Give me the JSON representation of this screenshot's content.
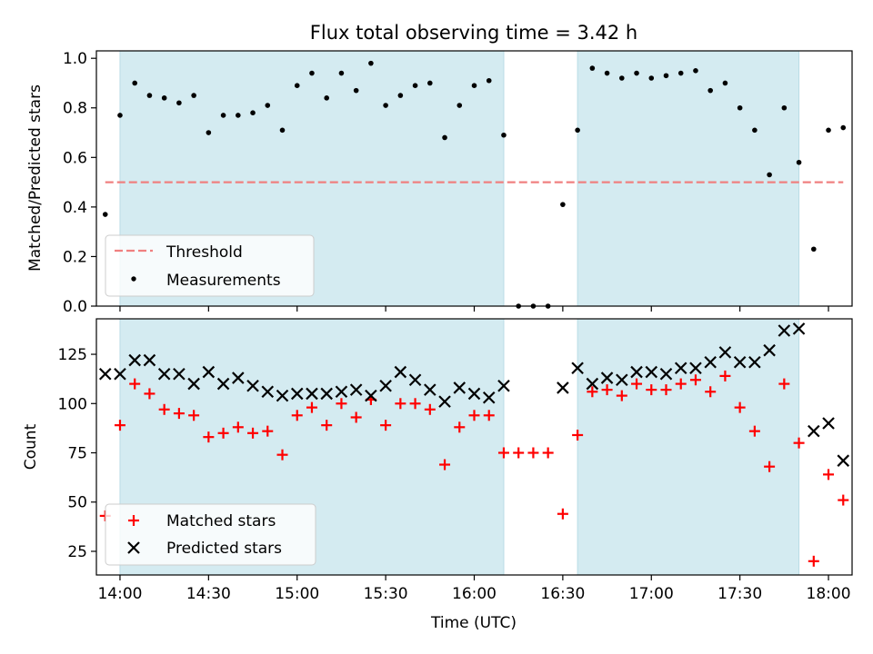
{
  "chart_data": {
    "title": "Flux total observing time = 3.42 h",
    "xlabel": "Time (UTC)",
    "x_ticks": [
      "14:00",
      "14:30",
      "15:00",
      "15:30",
      "16:00",
      "16:30",
      "17:00",
      "17:30",
      "18:00"
    ],
    "x_range": [
      "13:52",
      "18:08"
    ],
    "shaded_intervals": [
      [
        "14:00",
        "16:10"
      ],
      [
        "16:35",
        "17:50"
      ]
    ],
    "shade_color": "#d4ebf1",
    "panels": [
      {
        "type": "scatter",
        "ylabel": "Matched/Predicted stars",
        "ylim": [
          0,
          1.03
        ],
        "yticks": [
          0.0,
          0.2,
          0.4,
          0.6,
          0.8,
          1.0
        ],
        "ytick_labels": [
          "0.0",
          "0.2",
          "0.4",
          "0.6",
          "0.8",
          "1.0"
        ],
        "legend": {
          "location": "lower-left",
          "entries": [
            "Threshold",
            "Measurements"
          ]
        },
        "threshold": {
          "name": "Threshold",
          "value": 0.5,
          "x_start": "13:55",
          "x_end": "18:05",
          "color": "#f08080"
        },
        "series": [
          {
            "name": "Measurements",
            "marker": "dot",
            "color": "#000000",
            "x": [
              "13:55",
              "14:00",
              "14:05",
              "14:10",
              "14:15",
              "14:20",
              "14:25",
              "14:30",
              "14:35",
              "14:40",
              "14:45",
              "14:50",
              "14:55",
              "15:00",
              "15:05",
              "15:10",
              "15:15",
              "15:20",
              "15:25",
              "15:30",
              "15:35",
              "15:40",
              "15:45",
              "15:50",
              "15:55",
              "16:00",
              "16:05",
              "16:10",
              "16:15",
              "16:20",
              "16:25",
              "16:30",
              "16:35",
              "16:40",
              "16:45",
              "16:50",
              "16:55",
              "17:00",
              "17:05",
              "17:10",
              "17:15",
              "17:20",
              "17:25",
              "17:30",
              "17:35",
              "17:40",
              "17:45",
              "17:50",
              "17:55",
              "18:00",
              "18:05"
            ],
            "y": [
              0.37,
              0.77,
              0.9,
              0.85,
              0.84,
              0.82,
              0.85,
              0.7,
              0.77,
              0.77,
              0.78,
              0.81,
              0.71,
              0.89,
              0.94,
              0.84,
              0.94,
              0.87,
              0.98,
              0.81,
              0.85,
              0.89,
              0.9,
              0.68,
              0.81,
              0.89,
              0.91,
              0.69,
              0.0,
              0.0,
              0.0,
              0.41,
              0.71,
              0.96,
              0.94,
              0.92,
              0.94,
              0.92,
              0.93,
              0.94,
              0.95,
              0.87,
              0.9,
              0.8,
              0.71,
              0.53,
              0.8,
              0.58,
              0.23,
              0.71,
              0.72
            ]
          }
        ]
      },
      {
        "type": "scatter",
        "ylabel": "Count",
        "ylim": [
          13,
          143
        ],
        "yticks": [
          25,
          50,
          75,
          100,
          125
        ],
        "ytick_labels": [
          "25",
          "50",
          "75",
          "100",
          "125"
        ],
        "legend": {
          "location": "lower-left",
          "entries": [
            "Matched stars",
            "Predicted stars"
          ]
        },
        "series": [
          {
            "name": "Matched stars",
            "marker": "plus",
            "color": "#ff0000",
            "x": [
              "13:55",
              "14:00",
              "14:05",
              "14:10",
              "14:15",
              "14:20",
              "14:25",
              "14:30",
              "14:35",
              "14:40",
              "14:45",
              "14:50",
              "14:55",
              "15:00",
              "15:05",
              "15:10",
              "15:15",
              "15:20",
              "15:25",
              "15:30",
              "15:35",
              "15:40",
              "15:45",
              "15:50",
              "15:55",
              "16:00",
              "16:05",
              "16:10",
              "16:15",
              "16:20",
              "16:25",
              "16:30",
              "16:35",
              "16:40",
              "16:45",
              "16:50",
              "16:55",
              "17:00",
              "17:05",
              "17:10",
              "17:15",
              "17:20",
              "17:25",
              "17:30",
              "17:35",
              "17:40",
              "17:45",
              "17:50",
              "17:55",
              "18:00",
              "18:05"
            ],
            "y": [
              43,
              89,
              110,
              105,
              97,
              95,
              94,
              83,
              85,
              88,
              85,
              86,
              74,
              94,
              98,
              89,
              100,
              93,
              102,
              89,
              100,
              100,
              97,
              69,
              88,
              94,
              94,
              75,
              75,
              75,
              75,
              44,
              84,
              106,
              107,
              104,
              110,
              107,
              107,
              110,
              112,
              106,
              114,
              98,
              86,
              68,
              110,
              80,
              20,
              64,
              51
            ]
          },
          {
            "name": "Predicted stars",
            "marker": "x",
            "color": "#000000",
            "x": [
              "13:55",
              "14:00",
              "14:05",
              "14:10",
              "14:15",
              "14:20",
              "14:25",
              "14:30",
              "14:35",
              "14:40",
              "14:45",
              "14:50",
              "14:55",
              "15:00",
              "15:05",
              "15:10",
              "15:15",
              "15:20",
              "15:25",
              "15:30",
              "15:35",
              "15:40",
              "15:45",
              "15:50",
              "15:55",
              "16:00",
              "16:05",
              "16:10",
              "16:30",
              "16:35",
              "16:40",
              "16:45",
              "16:50",
              "16:55",
              "17:00",
              "17:05",
              "17:10",
              "17:15",
              "17:20",
              "17:25",
              "17:30",
              "17:35",
              "17:40",
              "17:45",
              "17:50",
              "17:55",
              "18:00",
              "18:05"
            ],
            "y": [
              115,
              115,
              122,
              122,
              115,
              115,
              110,
              116,
              110,
              113,
              109,
              106,
              104,
              105,
              105,
              105,
              106,
              107,
              104,
              109,
              116,
              112,
              107,
              101,
              108,
              105,
              103,
              109,
              108,
              118,
              110,
              113,
              112,
              116,
              116,
              115,
              118,
              118,
              121,
              126,
              121,
              121,
              127,
              137,
              138,
              86,
              90,
              71
            ]
          }
        ]
      }
    ]
  }
}
